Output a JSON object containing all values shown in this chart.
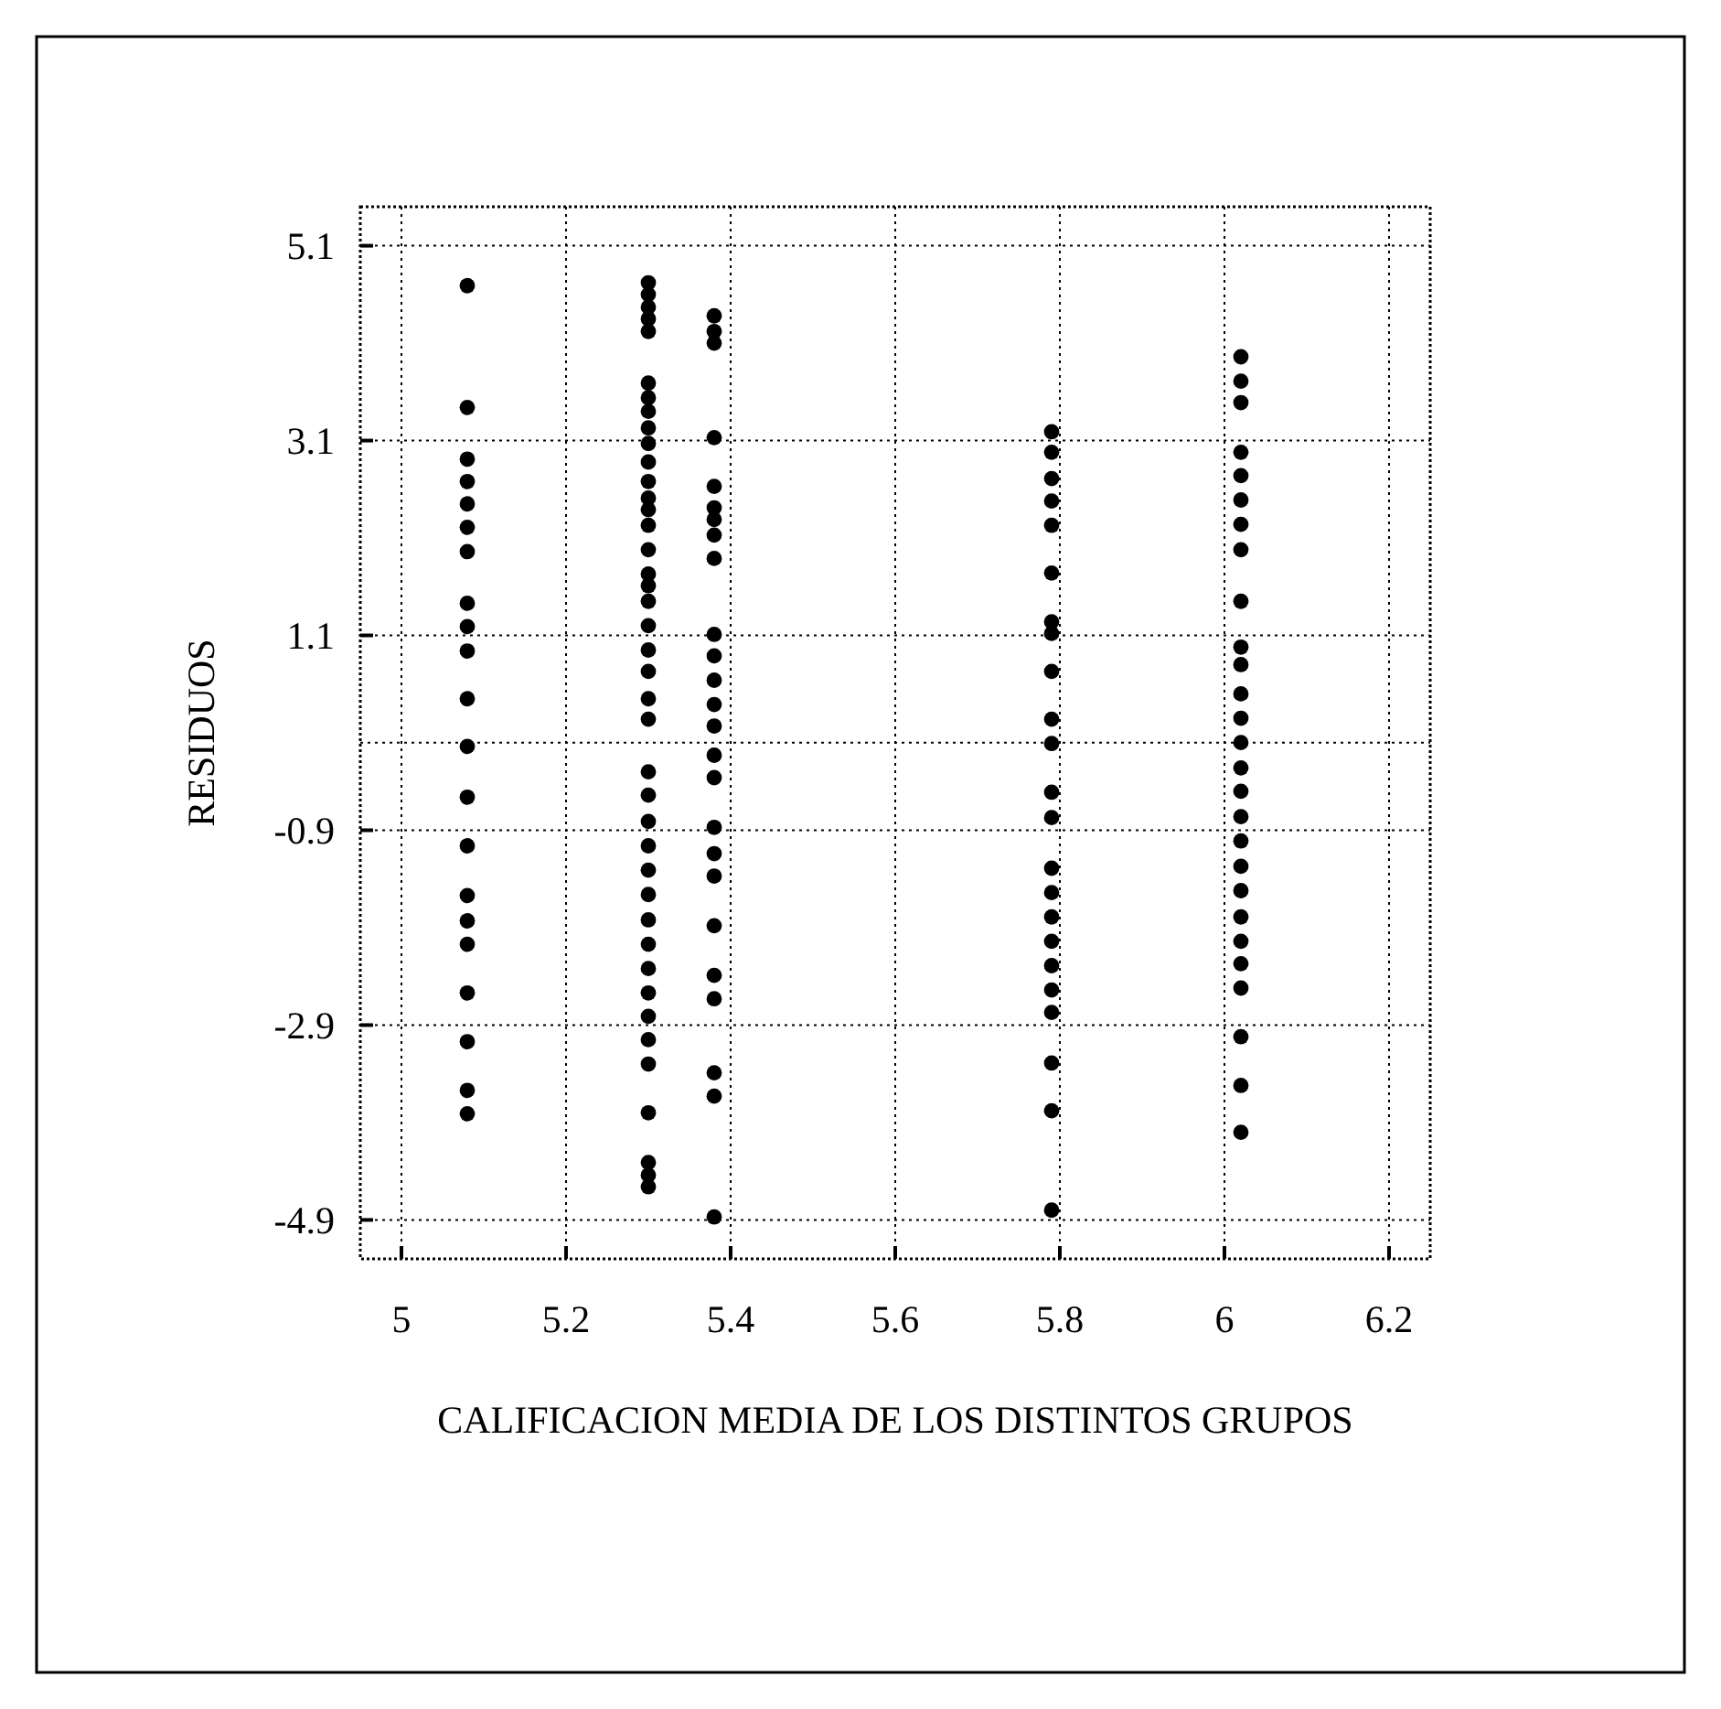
{
  "chart_data": {
    "type": "scatter",
    "xlabel": "CALIFICACION MEDIA DE LOS DISTINTOS GRUPOS",
    "ylabel": "RESIDUOS",
    "xlim": [
      4.95,
      6.25
    ],
    "ylim": [
      -5.3,
      5.5
    ],
    "xticks": [
      5,
      5.2,
      5.4,
      5.6,
      5.8,
      6,
      6.2
    ],
    "yticks": [
      5.1,
      3.1,
      1.1,
      -0.9,
      -2.9,
      -4.9
    ],
    "grid": true,
    "marker": "circle",
    "ref_lines": [
      {
        "axis": "y",
        "value": 0
      }
    ],
    "series": [
      {
        "color": "#000000",
        "x": [
          5.08,
          5.08,
          5.08,
          5.08,
          5.08,
          5.08,
          5.08,
          5.08,
          5.08,
          5.08,
          5.08,
          5.08,
          5.08,
          5.08,
          5.08,
          5.08,
          5.08,
          5.08,
          5.08,
          5.08,
          5.08
        ],
        "values": [
          4.69,
          3.44,
          2.91,
          2.68,
          2.45,
          2.21,
          1.96,
          1.43,
          1.19,
          0.94,
          0.45,
          -0.04,
          -0.56,
          -1.06,
          -1.57,
          -1.83,
          -2.07,
          -2.57,
          -3.07,
          -3.57,
          -3.81
        ]
      },
      {
        "color": "#000000",
        "x": [
          5.3,
          5.3,
          5.3,
          5.3,
          5.3,
          5.3,
          5.3,
          5.3,
          5.3,
          5.3,
          5.3,
          5.3,
          5.3,
          5.3,
          5.3,
          5.3,
          5.3,
          5.3,
          5.3,
          5.3,
          5.3,
          5.3,
          5.3,
          5.3,
          5.3,
          5.3,
          5.3,
          5.3,
          5.3,
          5.3,
          5.3,
          5.3,
          5.3,
          5.3,
          5.3,
          5.3,
          5.3,
          5.3,
          5.3,
          5.3,
          5.3
        ],
        "values": [
          4.72,
          4.6,
          4.47,
          4.35,
          4.22,
          3.69,
          3.54,
          3.4,
          3.23,
          3.07,
          2.88,
          2.68,
          2.51,
          2.39,
          2.23,
          1.98,
          1.73,
          1.61,
          1.45,
          1.2,
          0.95,
          0.73,
          0.45,
          0.24,
          -0.3,
          -0.54,
          -0.81,
          -1.06,
          -1.31,
          -1.56,
          -1.82,
          -2.07,
          -2.32,
          -2.57,
          -2.81,
          -3.05,
          -3.3,
          -3.8,
          -4.31,
          -4.44,
          -4.56
        ]
      },
      {
        "color": "#000000",
        "x": [
          5.38,
          5.38,
          5.38,
          5.38,
          5.38,
          5.38,
          5.38,
          5.38,
          5.38,
          5.38,
          5.38,
          5.38,
          5.38,
          5.38,
          5.38,
          5.38,
          5.38,
          5.38,
          5.38,
          5.38,
          5.38,
          5.38,
          5.38,
          5.38,
          5.38
        ],
        "values": [
          4.38,
          4.22,
          4.1,
          3.13,
          2.63,
          2.41,
          2.29,
          2.13,
          1.89,
          1.11,
          0.89,
          0.64,
          0.39,
          0.17,
          -0.13,
          -0.36,
          -0.87,
          -1.14,
          -1.37,
          -1.88,
          -2.39,
          -2.63,
          -3.39,
          -3.63,
          -4.87
        ]
      },
      {
        "color": "#000000",
        "x": [
          5.79,
          5.79,
          5.79,
          5.79,
          5.79,
          5.79,
          5.79,
          5.79,
          5.79,
          5.79,
          5.79,
          5.79,
          5.79,
          5.79,
          5.79,
          5.79,
          5.79,
          5.79,
          5.79,
          5.79,
          5.79,
          5.79,
          5.79
        ],
        "values": [
          3.19,
          2.98,
          2.71,
          2.48,
          2.23,
          1.74,
          1.24,
          1.12,
          0.73,
          0.24,
          -0.01,
          -0.51,
          -0.77,
          -1.29,
          -1.54,
          -1.79,
          -2.04,
          -2.29,
          -2.54,
          -2.77,
          -3.29,
          -3.78,
          -4.8
        ]
      },
      {
        "color": "#000000",
        "x": [
          6.02,
          6.02,
          6.02,
          6.02,
          6.02,
          6.02,
          6.02,
          6.02,
          6.02,
          6.02,
          6.02,
          6.02,
          6.02,
          6.02,
          6.02,
          6.02,
          6.02,
          6.02,
          6.02,
          6.02,
          6.02,
          6.02,
          6.02,
          6.02,
          6.02,
          6.02,
          6.02
        ],
        "values": [
          3.96,
          3.71,
          3.49,
          2.98,
          2.74,
          2.49,
          2.24,
          1.98,
          1.45,
          0.98,
          0.8,
          0.5,
          0.25,
          0,
          -0.26,
          -0.5,
          -0.76,
          -1.01,
          -1.27,
          -1.52,
          -1.79,
          -2.04,
          -2.27,
          -2.52,
          -3.02,
          -3.52,
          -4
        ]
      }
    ]
  }
}
